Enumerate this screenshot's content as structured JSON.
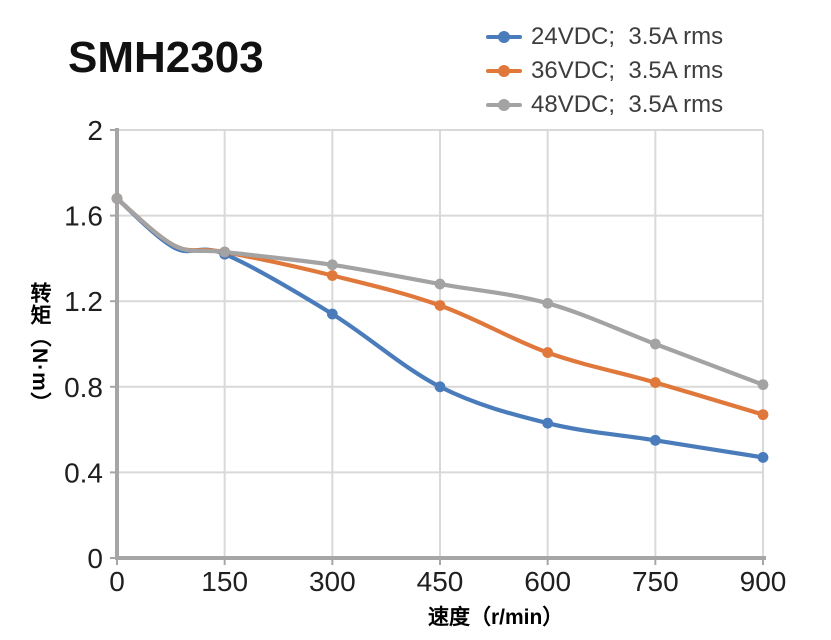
{
  "title": "SMH2303",
  "chart_data": {
    "type": "line",
    "title": "SMH2303",
    "x_label": "速度（r/min）",
    "y_label": "转矩（N·m）",
    "x_range": [
      0,
      900
    ],
    "y_range": [
      0,
      2
    ],
    "x_ticks": [
      0,
      150,
      300,
      450,
      600,
      750,
      900
    ],
    "y_ticks": [
      0,
      0.4,
      0.8,
      1.2,
      1.6,
      2
    ],
    "grid": true,
    "legend_position": "top-right",
    "line_style": "smooth-with-markers",
    "x": [
      0,
      80,
      150,
      300,
      450,
      600,
      750,
      900
    ],
    "marker_hidden_x": [
      80
    ],
    "series": [
      {
        "name": "24VDC;  3.5A rms",
        "color": "#4A7CBB",
        "values": [
          1.68,
          1.45,
          1.42,
          1.14,
          0.8,
          0.63,
          0.55,
          0.47
        ]
      },
      {
        "name": "36VDC;  3.5A rms",
        "color": "#E0783C",
        "values": [
          1.68,
          1.46,
          1.43,
          1.32,
          1.18,
          0.96,
          0.82,
          0.67
        ]
      },
      {
        "name": "48VDC;  3.5A rms",
        "color": "#A3A3A3",
        "values": [
          1.68,
          1.46,
          1.43,
          1.37,
          1.28,
          1.19,
          1.0,
          0.81
        ]
      }
    ],
    "style": {
      "gridline_color": "#D9D9D9",
      "axis_color": "#A6A6A6",
      "tick_text_color": "#1f1f1f",
      "line_width": 4.2,
      "marker_radius": 5.4
    }
  }
}
